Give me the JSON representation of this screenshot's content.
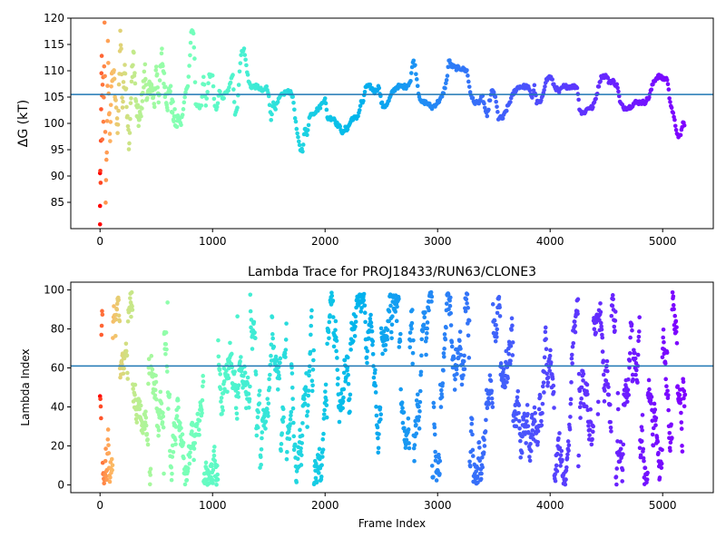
{
  "chart_data": [
    {
      "type": "scatter",
      "title": "",
      "xlabel": "",
      "ylabel": "ΔG (kT)",
      "xlim": [
        -260,
        5450
      ],
      "ylim": [
        80,
        120
      ],
      "x_ticks": [
        0,
        1000,
        2000,
        3000,
        4000,
        5000
      ],
      "y_ticks": [
        85,
        90,
        95,
        100,
        105,
        110,
        115,
        120
      ],
      "reference_line": {
        "y": 105.5,
        "color": "#1f77b4"
      },
      "colormap": "rainbow (red at early frames → violet at late frames)",
      "n_frames": 5200,
      "series": [
        {
          "trace_points_frame_dg": [
            [
              0,
              80.2
            ],
            [
              0,
              90
            ],
            [
              5,
              88
            ],
            [
              10,
              104
            ],
            [
              15,
              112
            ],
            [
              20,
              96
            ],
            [
              25,
              120
            ],
            [
              30,
              100
            ],
            [
              40,
              118
            ],
            [
              50,
              86.5
            ],
            [
              60,
              95
            ],
            [
              70,
              114
            ],
            [
              80,
              102
            ],
            [
              90,
              98
            ],
            [
              100,
              107
            ],
            [
              120,
              110
            ],
            [
              140,
              103
            ],
            [
              160,
              99
            ],
            [
              180,
              118
            ],
            [
              200,
              104
            ],
            [
              220,
              112
            ],
            [
              240,
              101
            ],
            [
              260,
              96
            ],
            [
              280,
              108
            ],
            [
              300,
              113
            ],
            [
              320,
              103
            ],
            [
              350,
              100
            ],
            [
              380,
              106
            ],
            [
              400,
              110
            ],
            [
              420,
              104
            ],
            [
              450,
              108
            ],
            [
              480,
              103
            ],
            [
              500,
              111
            ],
            [
              520,
              105
            ],
            [
              550,
              113
            ],
            [
              570,
              108
            ],
            [
              600,
              104
            ],
            [
              620,
              107
            ],
            [
              640,
              103
            ],
            [
              660,
              101
            ],
            [
              680,
              100
            ],
            [
              700,
              101
            ],
            [
              720,
              100
            ],
            [
              740,
              103
            ],
            [
              760,
              106
            ],
            [
              780,
              107
            ],
            [
              800,
              113
            ],
            [
              810,
              117.5
            ],
            [
              830,
              117
            ],
            [
              840,
              112
            ],
            [
              850,
              104
            ],
            [
              870,
              103
            ],
            [
              900,
              103.5
            ],
            [
              920,
              109
            ],
            [
              940,
              103
            ],
            [
              970,
              109
            ],
            [
              1000,
              109
            ],
            [
              1020,
              103
            ],
            [
              1040,
              103
            ],
            [
              1060,
              106
            ],
            [
              1080,
              105
            ],
            [
              1100,
              105
            ],
            [
              1120,
              106
            ],
            [
              1140,
              106
            ],
            [
              1160,
              108
            ],
            [
              1180,
              109
            ],
            [
              1200,
              102
            ],
            [
              1220,
              103
            ],
            [
              1240,
              110
            ],
            [
              1260,
              114
            ],
            [
              1280,
              114
            ],
            [
              1300,
              111
            ],
            [
              1320,
              108
            ],
            [
              1340,
              107
            ],
            [
              1360,
              107
            ],
            [
              1400,
              107
            ],
            [
              1450,
              106
            ],
            [
              1480,
              107
            ],
            [
              1500,
              105
            ],
            [
              1520,
              101
            ],
            [
              1540,
              104
            ],
            [
              1560,
              103
            ],
            [
              1580,
              104
            ],
            [
              1600,
              105
            ],
            [
              1650,
              106
            ],
            [
              1700,
              106
            ],
            [
              1720,
              104
            ],
            [
              1740,
              100
            ],
            [
              1760,
              97
            ],
            [
              1780,
              95
            ],
            [
              1800,
              95
            ],
            [
              1820,
              99
            ],
            [
              1840,
              98
            ],
            [
              1860,
              101
            ],
            [
              1880,
              102
            ],
            [
              1900,
              102
            ],
            [
              1950,
              103
            ],
            [
              1980,
              104
            ],
            [
              2000,
              105
            ],
            [
              2020,
              101
            ],
            [
              2040,
              101
            ],
            [
              2080,
              101
            ],
            [
              2100,
              100
            ],
            [
              2140,
              99
            ],
            [
              2160,
              98
            ],
            [
              2180,
              99
            ],
            [
              2200,
              99
            ],
            [
              2240,
              101
            ],
            [
              2280,
              101
            ],
            [
              2300,
              102
            ],
            [
              2320,
              104
            ],
            [
              2340,
              104
            ],
            [
              2360,
              107
            ],
            [
              2400,
              107
            ],
            [
              2440,
              106
            ],
            [
              2480,
              107
            ],
            [
              2500,
              104
            ],
            [
              2520,
              103
            ],
            [
              2560,
              104
            ],
            [
              2600,
              106
            ],
            [
              2640,
              107
            ],
            [
              2680,
              107
            ],
            [
              2720,
              107
            ],
            [
              2760,
              108
            ],
            [
              2780,
              112
            ],
            [
              2800,
              111
            ],
            [
              2830,
              106
            ],
            [
              2850,
              104
            ],
            [
              2900,
              104
            ],
            [
              2950,
              103
            ],
            [
              3000,
              104
            ],
            [
              3040,
              105
            ],
            [
              3080,
              108
            ],
            [
              3100,
              112
            ],
            [
              3120,
              111
            ],
            [
              3160,
              110.5
            ],
            [
              3200,
              110.5
            ],
            [
              3260,
              110
            ],
            [
              3290,
              106
            ],
            [
              3320,
              104
            ],
            [
              3360,
              104
            ],
            [
              3400,
              105
            ],
            [
              3420,
              103
            ],
            [
              3440,
              101
            ],
            [
              3460,
              104
            ],
            [
              3480,
              106
            ],
            [
              3500,
              106
            ],
            [
              3520,
              104
            ],
            [
              3540,
              101
            ],
            [
              3580,
              101
            ],
            [
              3640,
              104
            ],
            [
              3680,
              106
            ],
            [
              3720,
              107
            ],
            [
              3760,
              107
            ],
            [
              3800,
              107
            ],
            [
              3840,
              105
            ],
            [
              3860,
              107
            ],
            [
              3880,
              104
            ],
            [
              3920,
              104
            ],
            [
              3960,
              108
            ],
            [
              4000,
              109
            ],
            [
              4040,
              107
            ],
            [
              4080,
              106
            ],
            [
              4120,
              107
            ],
            [
              4180,
              107
            ],
            [
              4240,
              107
            ],
            [
              4260,
              103
            ],
            [
              4280,
              102
            ],
            [
              4300,
              102
            ],
            [
              4340,
              103
            ],
            [
              4380,
              103
            ],
            [
              4420,
              106
            ],
            [
              4440,
              108
            ],
            [
              4460,
              109
            ],
            [
              4500,
              109
            ],
            [
              4520,
              108
            ],
            [
              4560,
              108
            ],
            [
              4600,
              107
            ],
            [
              4620,
              104
            ],
            [
              4650,
              103
            ],
            [
              4700,
              103
            ],
            [
              4760,
              104
            ],
            [
              4800,
              104
            ],
            [
              4840,
              104
            ],
            [
              4880,
              105
            ],
            [
              4920,
              108
            ],
            [
              4960,
              109
            ],
            [
              5000,
              108.5
            ],
            [
              5040,
              108.5
            ],
            [
              5060,
              105
            ],
            [
              5080,
              103
            ],
            [
              5100,
              101
            ],
            [
              5120,
              99
            ],
            [
              5140,
              97
            ],
            [
              5160,
              98
            ],
            [
              5180,
              100
            ],
            [
              5200,
              100
            ]
          ]
        }
      ]
    },
    {
      "type": "scatter",
      "title": "Lambda Trace for PROJ18433/RUN63/CLONE3",
      "xlabel": "Frame Index",
      "ylabel": "Lambda Index",
      "xlim": [
        -260,
        5450
      ],
      "ylim": [
        -4,
        104
      ],
      "x_ticks": [
        0,
        1000,
        2000,
        3000,
        4000,
        5000
      ],
      "y_ticks": [
        0,
        20,
        40,
        60,
        80,
        100
      ],
      "reference_line": {
        "y": 61,
        "color": "#1f77b4"
      },
      "colormap": "rainbow (red at early frames → violet at late frames)",
      "n_frames": 5200,
      "lambda_range": [
        0,
        99
      ],
      "description_of_values": "each frame has one lambda index in 0–99; points fill vertical bands across the whole range"
    }
  ]
}
